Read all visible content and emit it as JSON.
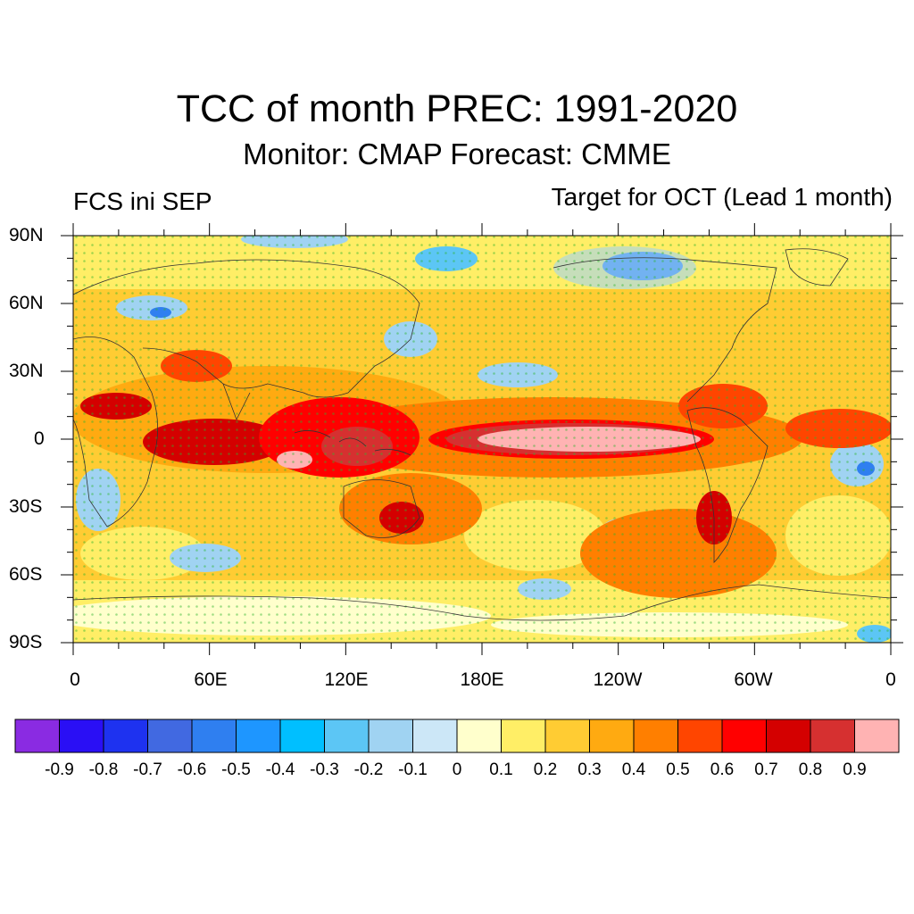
{
  "title": "TCC of month PREC: 1991-2020",
  "subtitle": "Monitor: CMAP   Forecast: CMME",
  "left_label": "FCS ini SEP",
  "right_label": "Target for OCT (Lead 1 month)",
  "lat_ticks": [
    "90N",
    "60N",
    "30N",
    "0",
    "30S",
    "60S",
    "90S"
  ],
  "lon_ticks": [
    "0",
    "60E",
    "120E",
    "180E",
    "120W",
    "60W",
    "0"
  ],
  "colorbar": {
    "colors": [
      "#8a2be2",
      "#2a0ff5",
      "#1e32f0",
      "#4169e1",
      "#2f7ff0",
      "#1e96ff",
      "#00bfff",
      "#5cc6f5",
      "#a0d3f2",
      "#cce7f7",
      "#ffffcc",
      "#ffee66",
      "#ffcc33",
      "#ffaa11",
      "#ff7f00",
      "#ff4500",
      "#ff0000",
      "#d40000",
      "#d63030",
      "#ffb3b3"
    ],
    "labels": [
      "-0.9",
      "-0.8",
      "-0.7",
      "-0.6",
      "-0.5",
      "-0.4",
      "-0.3",
      "-0.2",
      "-0.1",
      "0",
      "0.1",
      "0.2",
      "0.3",
      "0.4",
      "0.5",
      "0.6",
      "0.7",
      "0.8",
      "0.9"
    ]
  }
}
